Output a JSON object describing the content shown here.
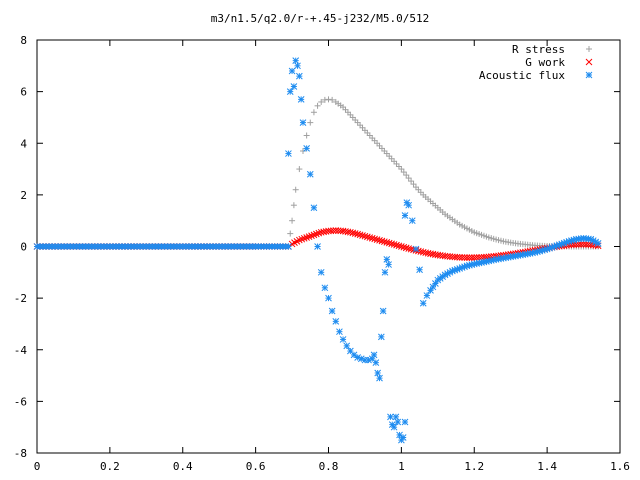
{
  "chart_data": {
    "type": "scatter",
    "title": "m3/n1.5/q2.0/r-+.45-j232/M5.0/512",
    "xlabel": "",
    "ylabel": "",
    "xlim": [
      0,
      1.6
    ],
    "ylim": [
      -8,
      8
    ],
    "xticks": [
      0,
      0.2,
      0.4,
      0.6,
      0.8,
      1,
      1.2,
      1.4,
      1.6
    ],
    "xtick_labels": [
      "0",
      "0.2",
      "0.4",
      "0.6",
      "0.8",
      "1",
      "1.2",
      "1.4",
      "1.6"
    ],
    "yticks": [
      -8,
      -6,
      -4,
      -2,
      0,
      2,
      4,
      6,
      8
    ],
    "ytick_labels": [
      "-8",
      "-6",
      "-4",
      "-2",
      "0",
      "2",
      "4",
      "6",
      "8"
    ],
    "grid": false,
    "legend_position": "top-right",
    "series": [
      {
        "name": "R stress",
        "marker": "+",
        "color": "#a0a0a0",
        "points": [
          [
            0.0,
            0.0
          ],
          [
            0.1,
            0.0
          ],
          [
            0.2,
            0.0
          ],
          [
            0.3,
            0.0
          ],
          [
            0.4,
            0.0
          ],
          [
            0.5,
            0.0
          ],
          [
            0.6,
            0.0
          ],
          [
            0.69,
            0.0
          ],
          [
            0.695,
            0.5
          ],
          [
            0.7,
            1.0
          ],
          [
            0.705,
            1.6
          ],
          [
            0.71,
            2.2
          ],
          [
            0.72,
            3.0
          ],
          [
            0.73,
            3.7
          ],
          [
            0.74,
            4.3
          ],
          [
            0.75,
            4.8
          ],
          [
            0.76,
            5.2
          ],
          [
            0.77,
            5.45
          ],
          [
            0.78,
            5.6
          ],
          [
            0.79,
            5.68
          ],
          [
            0.8,
            5.7
          ],
          [
            0.81,
            5.68
          ],
          [
            0.82,
            5.6
          ],
          [
            0.84,
            5.4
          ],
          [
            0.86,
            5.1
          ],
          [
            0.88,
            4.8
          ],
          [
            0.9,
            4.5
          ],
          [
            0.92,
            4.2
          ],
          [
            0.94,
            3.9
          ],
          [
            0.96,
            3.6
          ],
          [
            0.98,
            3.3
          ],
          [
            1.0,
            3.0
          ],
          [
            1.02,
            2.65
          ],
          [
            1.04,
            2.3
          ],
          [
            1.06,
            2.0
          ],
          [
            1.08,
            1.75
          ],
          [
            1.1,
            1.5
          ],
          [
            1.12,
            1.25
          ],
          [
            1.14,
            1.05
          ],
          [
            1.16,
            0.85
          ],
          [
            1.18,
            0.7
          ],
          [
            1.2,
            0.55
          ],
          [
            1.22,
            0.45
          ],
          [
            1.24,
            0.35
          ],
          [
            1.26,
            0.27
          ],
          [
            1.28,
            0.2
          ],
          [
            1.3,
            0.15
          ],
          [
            1.32,
            0.11
          ],
          [
            1.34,
            0.08
          ],
          [
            1.36,
            0.05
          ],
          [
            1.38,
            0.03
          ],
          [
            1.4,
            0.02
          ],
          [
            1.42,
            0.01
          ],
          [
            1.44,
            0.01
          ],
          [
            1.46,
            0.0
          ],
          [
            1.48,
            0.0
          ],
          [
            1.5,
            0.0
          ],
          [
            1.52,
            0.0
          ],
          [
            1.54,
            0.0
          ]
        ]
      },
      {
        "name": "G work",
        "marker": "x",
        "color": "#ff0000",
        "points": [
          [
            0.0,
            0.0
          ],
          [
            0.1,
            0.0
          ],
          [
            0.2,
            0.0
          ],
          [
            0.3,
            0.0
          ],
          [
            0.4,
            0.0
          ],
          [
            0.5,
            0.0
          ],
          [
            0.6,
            0.0
          ],
          [
            0.69,
            0.0
          ],
          [
            0.7,
            0.1
          ],
          [
            0.72,
            0.25
          ],
          [
            0.74,
            0.35
          ],
          [
            0.76,
            0.45
          ],
          [
            0.78,
            0.55
          ],
          [
            0.8,
            0.6
          ],
          [
            0.82,
            0.62
          ],
          [
            0.84,
            0.6
          ],
          [
            0.86,
            0.55
          ],
          [
            0.88,
            0.48
          ],
          [
            0.9,
            0.4
          ],
          [
            0.92,
            0.32
          ],
          [
            0.94,
            0.24
          ],
          [
            0.96,
            0.16
          ],
          [
            0.98,
            0.08
          ],
          [
            1.0,
            0.0
          ],
          [
            1.02,
            -0.08
          ],
          [
            1.04,
            -0.15
          ],
          [
            1.06,
            -0.22
          ],
          [
            1.08,
            -0.28
          ],
          [
            1.1,
            -0.33
          ],
          [
            1.12,
            -0.37
          ],
          [
            1.14,
            -0.4
          ],
          [
            1.16,
            -0.42
          ],
          [
            1.18,
            -0.43
          ],
          [
            1.2,
            -0.43
          ],
          [
            1.22,
            -0.42
          ],
          [
            1.24,
            -0.4
          ],
          [
            1.26,
            -0.37
          ],
          [
            1.28,
            -0.34
          ],
          [
            1.3,
            -0.3
          ],
          [
            1.32,
            -0.26
          ],
          [
            1.34,
            -0.21
          ],
          [
            1.36,
            -0.16
          ],
          [
            1.38,
            -0.11
          ],
          [
            1.4,
            -0.06
          ],
          [
            1.42,
            -0.02
          ],
          [
            1.44,
            0.02
          ],
          [
            1.46,
            0.06
          ],
          [
            1.48,
            0.08
          ],
          [
            1.5,
            0.09
          ],
          [
            1.52,
            0.07
          ],
          [
            1.54,
            0.03
          ]
        ]
      },
      {
        "name": "Acoustic flux",
        "marker": "*",
        "color": "#1e8cf0",
        "points": [
          [
            0.0,
            0.0
          ],
          [
            0.1,
            0.0
          ],
          [
            0.2,
            0.0
          ],
          [
            0.3,
            0.0
          ],
          [
            0.4,
            0.0
          ],
          [
            0.5,
            0.0
          ],
          [
            0.6,
            0.0
          ],
          [
            0.69,
            0.0
          ],
          [
            0.69,
            3.6
          ],
          [
            0.695,
            6.0
          ],
          [
            0.7,
            6.8
          ],
          [
            0.705,
            6.2
          ],
          [
            0.71,
            7.2
          ],
          [
            0.715,
            7.0
          ],
          [
            0.72,
            6.6
          ],
          [
            0.725,
            5.7
          ],
          [
            0.73,
            4.8
          ],
          [
            0.74,
            3.8
          ],
          [
            0.75,
            2.8
          ],
          [
            0.76,
            1.5
          ],
          [
            0.77,
            0.0
          ],
          [
            0.78,
            -1.0
          ],
          [
            0.79,
            -1.6
          ],
          [
            0.8,
            -2.0
          ],
          [
            0.81,
            -2.5
          ],
          [
            0.82,
            -2.9
          ],
          [
            0.83,
            -3.3
          ],
          [
            0.84,
            -3.6
          ],
          [
            0.85,
            -3.85
          ],
          [
            0.86,
            -4.05
          ],
          [
            0.87,
            -4.2
          ],
          [
            0.88,
            -4.3
          ],
          [
            0.89,
            -4.35
          ],
          [
            0.9,
            -4.4
          ],
          [
            0.91,
            -4.4
          ],
          [
            0.92,
            -4.35
          ],
          [
            0.925,
            -4.2
          ],
          [
            0.93,
            -4.5
          ],
          [
            0.935,
            -4.9
          ],
          [
            0.94,
            -5.1
          ],
          [
            0.945,
            -3.5
          ],
          [
            0.95,
            -2.5
          ],
          [
            0.955,
            -1.0
          ],
          [
            0.96,
            -0.5
          ],
          [
            0.965,
            -0.7
          ],
          [
            0.97,
            -6.6
          ],
          [
            0.975,
            -6.9
          ],
          [
            0.98,
            -7.0
          ],
          [
            0.985,
            -6.6
          ],
          [
            0.99,
            -6.8
          ],
          [
            0.995,
            -7.3
          ],
          [
            1.0,
            -7.5
          ],
          [
            1.005,
            -7.4
          ],
          [
            1.01,
            -6.8
          ],
          [
            1.01,
            1.2
          ],
          [
            1.015,
            1.7
          ],
          [
            1.02,
            1.6
          ],
          [
            1.03,
            1.0
          ],
          [
            1.04,
            -0.1
          ],
          [
            1.05,
            -0.9
          ],
          [
            1.06,
            -2.2
          ],
          [
            1.07,
            -1.9
          ],
          [
            1.08,
            -1.7
          ],
          [
            1.1,
            -1.3
          ],
          [
            1.12,
            -1.1
          ],
          [
            1.14,
            -0.95
          ],
          [
            1.16,
            -0.85
          ],
          [
            1.18,
            -0.75
          ],
          [
            1.2,
            -0.68
          ],
          [
            1.22,
            -0.62
          ],
          [
            1.24,
            -0.56
          ],
          [
            1.26,
            -0.5
          ],
          [
            1.28,
            -0.45
          ],
          [
            1.3,
            -0.4
          ],
          [
            1.32,
            -0.35
          ],
          [
            1.34,
            -0.3
          ],
          [
            1.36,
            -0.25
          ],
          [
            1.38,
            -0.18
          ],
          [
            1.4,
            -0.1
          ],
          [
            1.42,
            0.0
          ],
          [
            1.44,
            0.1
          ],
          [
            1.46,
            0.2
          ],
          [
            1.48,
            0.28
          ],
          [
            1.5,
            0.32
          ],
          [
            1.52,
            0.28
          ],
          [
            1.54,
            0.12
          ]
        ]
      }
    ]
  }
}
